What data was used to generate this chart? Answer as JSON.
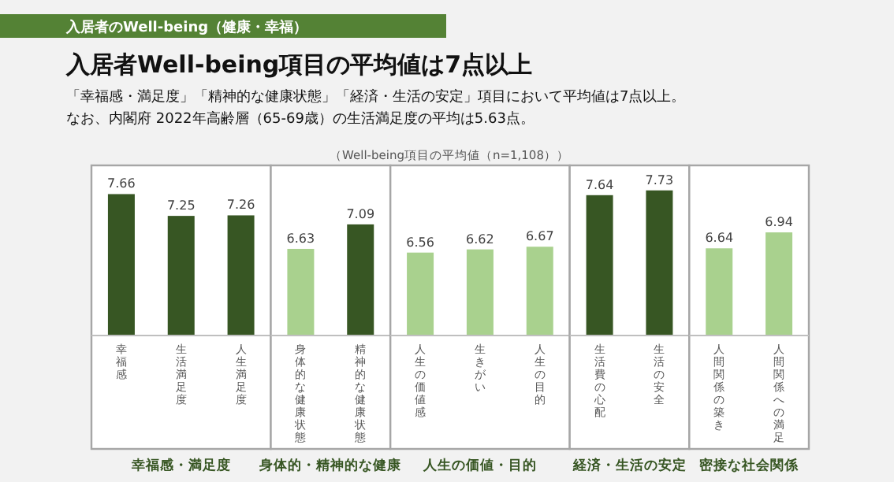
{
  "chart_data": [
    {
      "type": "bar",
      "title": "入居者Well-being項目の平均値は7点以上",
      "subtitle": "「幸福感・満足度」「精神的な健康状態」「経済・生活の安定」項目において平均値は7点以上。",
      "annotations": [
        "入居者のWell-being（健康・幸福）",
        "なお、内閣府 2022年高齢層（65-69歳）の生活満足度の平均は5.63点。",
        "（Well-being項目の平均値（n=1,108））"
      ],
      "xlabel": "幸福感・満足度",
      "categories": [
        "幸福感",
        "生活満足度",
        "人生満足度"
      ],
      "values": [
        7.66,
        7.25,
        7.26
      ],
      "colors": [
        "#375623",
        "#375623",
        "#375623"
      ],
      "ylim": [
        5,
        8.2
      ],
      "data_labels": true
    },
    {
      "type": "bar",
      "xlabel": "身体的・精神的な健康",
      "categories": [
        "身体的な健康状態",
        "精神的な健康状態"
      ],
      "values": [
        6.63,
        7.09
      ],
      "colors": [
        "#a9d18e",
        "#375623"
      ],
      "ylim": [
        5,
        8.2
      ],
      "data_labels": true
    },
    {
      "type": "bar",
      "xlabel": "人生の価値・目的",
      "categories": [
        "人生の価値感",
        "生きがい",
        "人生の目的"
      ],
      "values": [
        6.56,
        6.62,
        6.67
      ],
      "colors": [
        "#a9d18e",
        "#a9d18e",
        "#a9d18e"
      ],
      "ylim": [
        5,
        8.2
      ],
      "data_labels": true
    },
    {
      "type": "bar",
      "xlabel": "経済・生活の安定",
      "categories": [
        "生活費の心配",
        "生活の安全"
      ],
      "values": [
        7.64,
        7.73
      ],
      "colors": [
        "#375623",
        "#375623"
      ],
      "ylim": [
        5,
        8.2
      ],
      "data_labels": true
    },
    {
      "type": "bar",
      "xlabel": "密接な社会関係",
      "categories": [
        "人間関係の築き",
        "人間関係への満足"
      ],
      "values": [
        6.64,
        6.94
      ],
      "colors": [
        "#a9d18e",
        "#a9d18e"
      ],
      "ylim": [
        5,
        8.2
      ],
      "data_labels": true
    }
  ]
}
